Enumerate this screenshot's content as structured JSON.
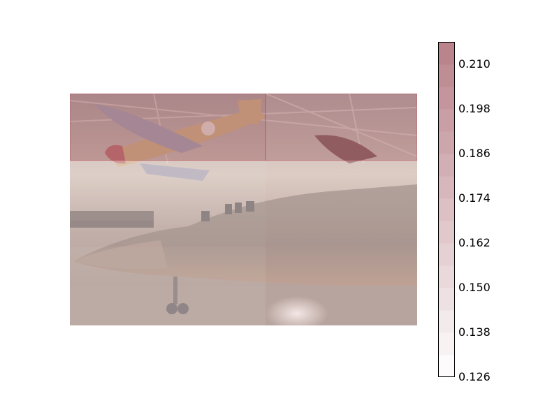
{
  "image": {
    "description": "Aircraft museum hangar photo (SR-71 Blackbird with a WWII fighter suspended above) overlaid with a 3x3 red heatmap grid"
  },
  "colorbar": {
    "ticks": [
      "0.210",
      "0.198",
      "0.186",
      "0.174",
      "0.162",
      "0.150",
      "0.138",
      "0.126"
    ],
    "min": 0.126,
    "max": 0.216,
    "low_color": "#ffffff",
    "high_color": "#b88088"
  },
  "heatmap": {
    "rows": 3,
    "cols": 3,
    "values": [
      [
        0.214,
        0.206,
        0.205
      ],
      [
        0.147,
        0.15,
        0.152
      ],
      [
        0.143,
        0.151,
        0.158
      ]
    ]
  }
}
